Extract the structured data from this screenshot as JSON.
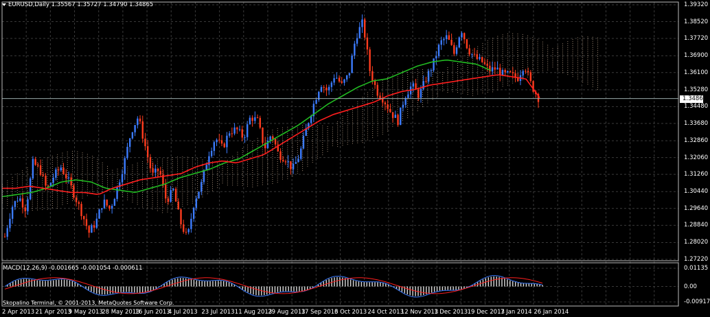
{
  "window": {
    "title": "EURUSD,Daily  1.35567 1.35727 1.34790 1.34865",
    "macd_title": "MACD(12,26,9) -0.001665 -0.001054 -0.000611",
    "copyright": "Skopalino Terminal, © 2001-2013, MetaQuotes Software Corp.",
    "current_price": "1.34865"
  },
  "colors": {
    "background": "#000000",
    "grid": "#3a3a3a",
    "bull_candle": "#3c7cff",
    "bear_candle": "#ff3c1e",
    "ma_red": "#ff1e1e",
    "ma_green": "#22bb22",
    "cloud": "#e8c8a8"
  },
  "chart_data": {
    "type": "candlestick",
    "symbol": "EURUSD",
    "timeframe": "Daily",
    "ohlc_last": {
      "open": 1.35567,
      "high": 1.35727,
      "low": 1.3479,
      "close": 1.34865
    },
    "ylim": [
      1.2722,
      1.3932
    ],
    "y_ticks": [
      "1.39320",
      "1.38520",
      "1.37720",
      "1.36900",
      "1.36100",
      "1.35280",
      "1.34480",
      "1.33680",
      "1.32860",
      "1.32060",
      "1.31260",
      "1.30440",
      "1.29640",
      "1.28840",
      "1.28020",
      "1.27220"
    ],
    "x_ticks": [
      "2 Apr 2013",
      "21 Apr 2013",
      "9 May 2013",
      "28 May 2013",
      "16 Jun 2013",
      "4 Jul 2013",
      "23 Jul 2013",
      "11 Aug 2013",
      "29 Aug 2013",
      "17 Sep 2013",
      "6 Oct 2013",
      "24 Oct 2013",
      "12 Nov 2013",
      "1 Dec 2013",
      "19 Dec 2013",
      "7 Jan 2014",
      "26 Jan 2014"
    ],
    "close_path": [
      1.283,
      1.297,
      1.302,
      1.296,
      1.318,
      1.315,
      1.305,
      1.312,
      1.316,
      1.31,
      1.302,
      1.294,
      1.285,
      1.29,
      1.3,
      1.296,
      1.306,
      1.318,
      1.333,
      1.34,
      1.326,
      1.312,
      1.315,
      1.3,
      1.305,
      1.29,
      1.282,
      1.3,
      1.308,
      1.322,
      1.33,
      1.325,
      1.333,
      1.334,
      1.33,
      1.34,
      1.338,
      1.325,
      1.332,
      1.322,
      1.32,
      1.315,
      1.322,
      1.335,
      1.346,
      1.356,
      1.352,
      1.36,
      1.355,
      1.36,
      1.378,
      1.385,
      1.362,
      1.352,
      1.348,
      1.342,
      1.338,
      1.35,
      1.355,
      1.35,
      1.358,
      1.365,
      1.375,
      1.378,
      1.37,
      1.382,
      1.372,
      1.368,
      1.366,
      1.362,
      1.363,
      1.36,
      1.36,
      1.358,
      1.365,
      1.355,
      1.349
    ],
    "ma_fast": [
      1.306,
      1.306,
      1.307,
      1.306,
      1.305,
      1.304,
      1.304,
      1.303,
      1.306,
      1.308,
      1.31,
      1.311,
      1.312,
      1.313,
      1.316,
      1.318,
      1.319,
      1.318,
      1.32,
      1.322,
      1.326,
      1.33,
      1.334,
      1.338,
      1.341,
      1.343,
      1.345,
      1.347,
      1.35,
      1.352,
      1.353,
      1.355,
      1.356,
      1.357,
      1.358,
      1.359,
      1.36,
      1.359,
      1.358,
      1.349
    ],
    "ma_slow": [
      1.302,
      1.303,
      1.304,
      1.306,
      1.309,
      1.31,
      1.309,
      1.306,
      1.305,
      1.304,
      1.306,
      1.308,
      1.311,
      1.313,
      1.315,
      1.318,
      1.32,
      1.324,
      1.328,
      1.332,
      1.336,
      1.341,
      1.346,
      1.35,
      1.354,
      1.357,
      1.358,
      1.361,
      1.364,
      1.366,
      1.367,
      1.366,
      1.365,
      1.362
    ],
    "macd_ylim": [
      -0.00917,
      0.01135
    ],
    "macd_ticks": [
      "0.01135",
      "0.00",
      "-0.00917"
    ]
  }
}
